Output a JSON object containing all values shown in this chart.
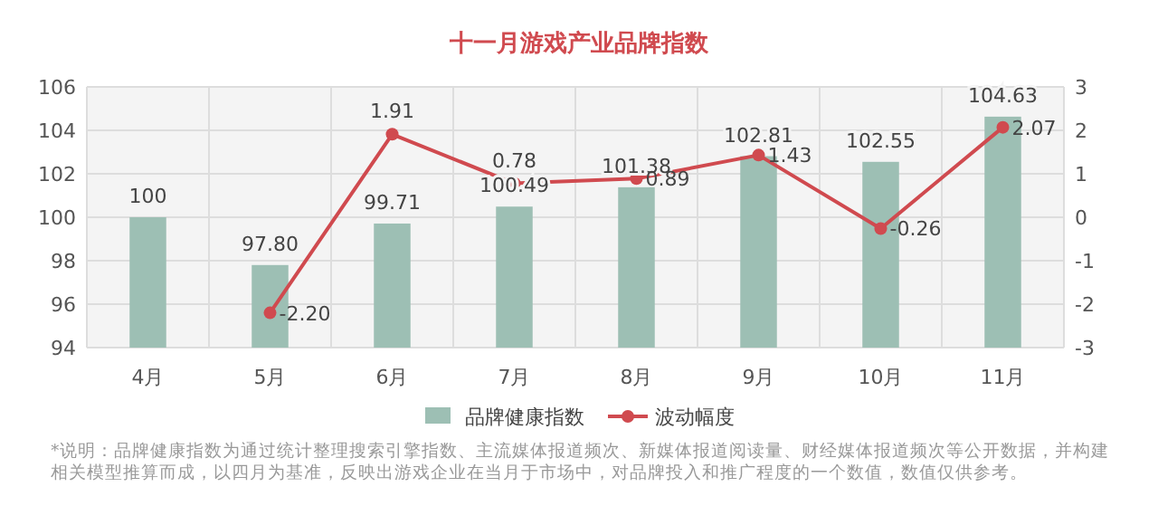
{
  "chart_data": {
    "type": "bar",
    "title": "十一月游戏产业品牌指数",
    "categories": [
      "4月",
      "5月",
      "6月",
      "7月",
      "8月",
      "9月",
      "10月",
      "11月"
    ],
    "series": [
      {
        "name": "品牌健康指数",
        "color": "#9dbfb4",
        "values": [
          100,
          97.8,
          99.71,
          100.49,
          101.38,
          102.81,
          102.55,
          104.63
        ],
        "value_labels": [
          "100",
          "97.80",
          "99.71",
          "100.49",
          "101.38",
          "102.81",
          "102.55",
          "104.63"
        ]
      },
      {
        "name": "波动幅度",
        "type": "line",
        "axis": "y2",
        "color": "#d04a4f",
        "marker": "circle",
        "values": [
          null,
          -2.2,
          1.91,
          0.78,
          0.89,
          1.43,
          -0.26,
          2.07
        ],
        "value_labels": [
          null,
          "-2.20",
          "1.91",
          "0.78",
          "0.89",
          "1.43",
          "-0.26",
          "2.07"
        ]
      }
    ],
    "ylim": [
      94,
      106
    ],
    "yticks": [
      94,
      96,
      98,
      100,
      102,
      104,
      106
    ],
    "y2lim": [
      -3,
      3
    ],
    "y2ticks": [
      -3,
      -2,
      -1,
      0,
      1,
      2,
      3
    ],
    "grid": true,
    "legend": "bottom",
    "annotations": [
      "*说明：品牌健康指数为通过统计整理搜索引擎指数、主流媒体报道频次、新媒体报道阅读量、财经媒体报道频次等公开数据，并构建相关模型推算而成，以四月为基准，反映出游戏企业在当月于市场中，对品牌投入和推广程度的一个数值，数值仅供参考。"
    ]
  }
}
